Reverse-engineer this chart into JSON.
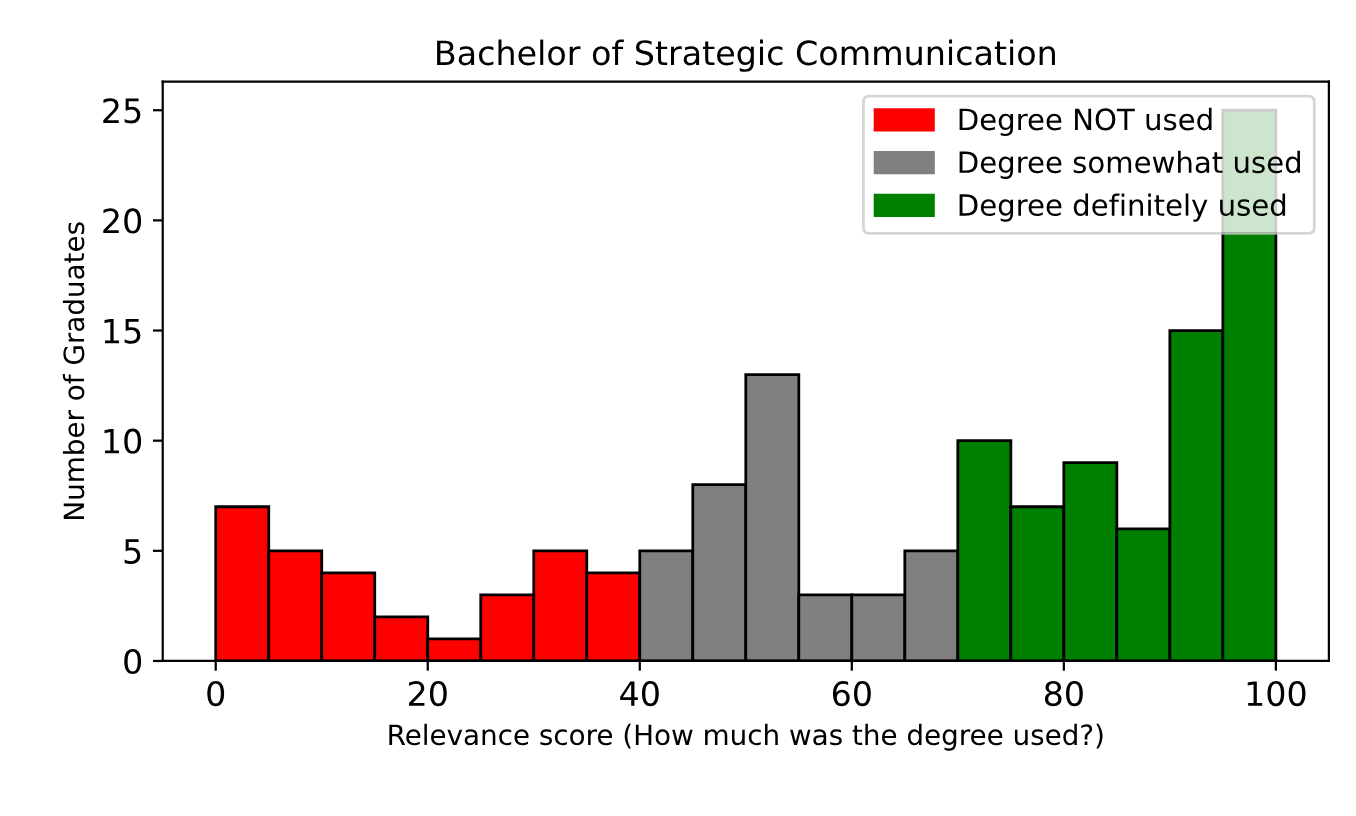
{
  "chart_data": {
    "type": "histogram",
    "title": "Bachelor of Strategic Communication",
    "xlabel": "Relevance score (How much was the degree used?)",
    "ylabel": "Number of Graduates",
    "bins": [
      0,
      5,
      10,
      15,
      20,
      25,
      30,
      35,
      40,
      45,
      50,
      55,
      60,
      65,
      70,
      75,
      80,
      85,
      90,
      95,
      100
    ],
    "series": [
      {
        "name": "Degree NOT used",
        "color": "#ff0000",
        "values": [
          7,
          5,
          4,
          2,
          1,
          3,
          5,
          4,
          null,
          null,
          null,
          null,
          null,
          null,
          null,
          null,
          null,
          null,
          null,
          null
        ]
      },
      {
        "name": "Degree somewhat used",
        "color": "#808080",
        "values": [
          null,
          null,
          null,
          null,
          null,
          null,
          null,
          null,
          5,
          8,
          13,
          3,
          3,
          5,
          null,
          null,
          null,
          null,
          null,
          null
        ]
      },
      {
        "name": "Degree definitely used",
        "color": "#008000",
        "values": [
          null,
          null,
          null,
          null,
          null,
          null,
          null,
          null,
          null,
          null,
          null,
          null,
          null,
          null,
          10,
          7,
          9,
          6,
          15,
          25
        ]
      }
    ],
    "xlim": [
      -5,
      105
    ],
    "xticks": [
      0,
      20,
      40,
      60,
      80,
      100
    ],
    "ylim": [
      0,
      26.3
    ],
    "yticks": [
      0,
      5,
      10,
      15,
      20,
      25
    ],
    "grid": false,
    "legend": "top right"
  }
}
